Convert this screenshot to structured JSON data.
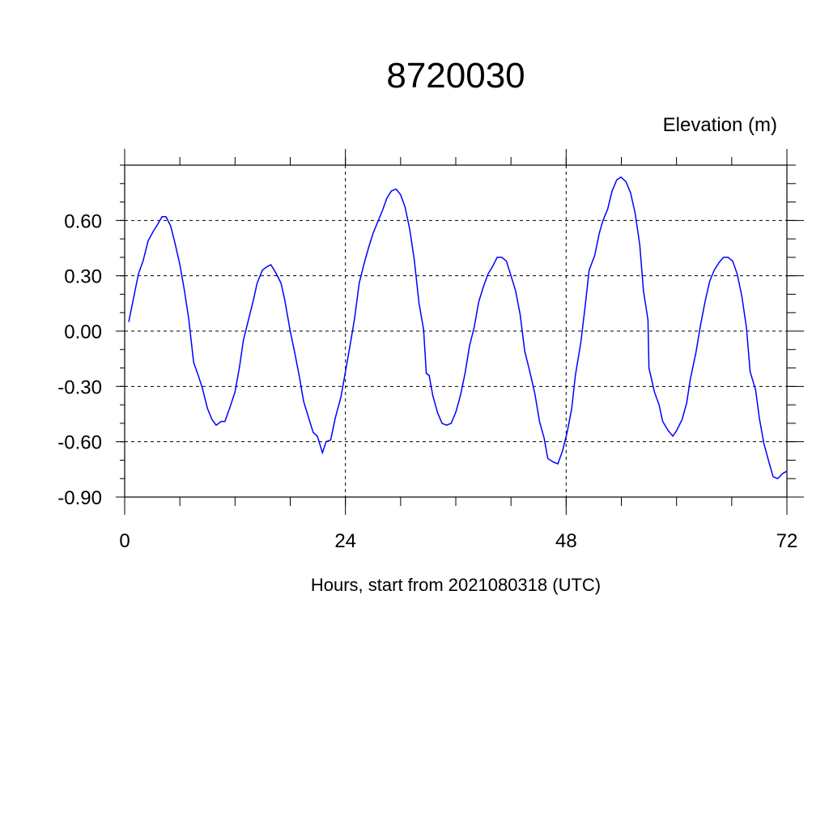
{
  "chart_data": {
    "type": "line",
    "title": "8720030",
    "ylabel": "Elevation (m)",
    "xlabel": "Hours, start from 2021080318 (UTC)",
    "xlim": [
      0,
      72
    ],
    "ylim": [
      -0.9,
      0.9
    ],
    "xticks": [
      0,
      24,
      48,
      72
    ],
    "xtick_labels": [
      "0",
      "24",
      "48",
      "72"
    ],
    "yticks": [
      0.6,
      0.3,
      0.0,
      -0.3,
      -0.6,
      -0.9
    ],
    "ytick_labels": [
      "0.60",
      "0.30",
      "0.00",
      "-0.30",
      "-0.60",
      "-0.90"
    ],
    "grid": "dashed at major ticks",
    "line_color": "#0000ff",
    "series": [
      {
        "x": [
          0.44,
          1.5,
          2.0,
          2.55,
          3.1,
          3.6,
          4.05,
          4.5,
          5.0,
          5.46,
          6.0,
          6.5,
          6.95,
          7.5,
          8.0,
          8.45,
          9.0,
          9.5,
          9.95,
          10.5,
          10.9,
          11.4,
          12.0,
          12.5,
          12.9,
          13.5,
          14.0,
          14.4,
          14.96,
          15.5,
          15.9,
          16.5,
          17.0,
          17.4,
          18.0,
          18.5,
          19.0,
          19.45,
          20.0,
          20.5,
          20.95,
          21.5,
          21.9,
          22.4,
          22.9,
          23.5,
          23.9,
          24.5,
          25.0,
          25.5,
          26.0,
          26.5,
          27.0,
          27.5,
          28.0,
          28.5,
          29.0,
          29.5,
          30.0,
          30.5,
          31.0,
          31.5,
          32.0,
          32.5,
          32.8,
          33.1,
          33.5,
          34.0,
          34.5,
          35.0,
          35.5,
          36.0,
          36.5,
          37.0,
          37.5,
          38.0,
          38.5,
          39.0,
          39.5,
          40.0,
          40.5,
          41.0,
          41.5,
          42.0,
          42.5,
          43.0,
          43.5,
          44.0,
          44.6,
          45.1,
          45.6,
          46.0,
          46.6,
          47.1,
          47.6,
          48.1,
          48.6,
          49.0,
          49.6,
          50.1,
          50.5,
          51.1,
          51.6,
          52.0,
          52.5,
          53.0,
          53.5,
          53.96,
          54.5,
          55.0,
          55.5,
          56.0,
          56.4,
          56.9,
          57.0,
          57.6,
          58.1,
          58.5,
          59.1,
          59.6,
          60.0,
          60.6,
          61.1,
          61.5,
          62.1,
          62.6,
          63.1,
          63.6,
          64.1,
          64.6,
          65.1,
          65.6,
          66.1,
          66.6,
          67.1,
          67.6,
          68.0,
          68.6,
          69.0,
          69.5,
          70.1,
          70.5,
          71.0,
          71.6,
          72.0
        ],
        "y": [
          0.05,
          0.31,
          0.38,
          0.49,
          0.54,
          0.58,
          0.62,
          0.62,
          0.57,
          0.48,
          0.36,
          0.22,
          0.07,
          -0.17,
          -0.24,
          -0.31,
          -0.42,
          -0.48,
          -0.51,
          -0.49,
          -0.49,
          -0.42,
          -0.33,
          -0.19,
          -0.05,
          0.07,
          0.17,
          0.26,
          0.33,
          0.35,
          0.36,
          0.31,
          0.26,
          0.17,
          0.0,
          -0.12,
          -0.25,
          -0.38,
          -0.47,
          -0.55,
          -0.57,
          -0.66,
          -0.6,
          -0.59,
          -0.47,
          -0.36,
          -0.25,
          -0.08,
          0.07,
          0.26,
          0.36,
          0.45,
          0.53,
          0.59,
          0.65,
          0.72,
          0.76,
          0.77,
          0.74,
          0.67,
          0.55,
          0.38,
          0.15,
          0.01,
          -0.23,
          -0.24,
          -0.35,
          -0.44,
          -0.5,
          -0.51,
          -0.5,
          -0.44,
          -0.35,
          -0.23,
          -0.08,
          0.02,
          0.16,
          0.24,
          0.31,
          0.35,
          0.4,
          0.4,
          0.38,
          0.3,
          0.22,
          0.09,
          -0.11,
          -0.21,
          -0.34,
          -0.49,
          -0.58,
          -0.69,
          -0.71,
          -0.72,
          -0.65,
          -0.55,
          -0.42,
          -0.24,
          -0.06,
          0.15,
          0.33,
          0.41,
          0.53,
          0.6,
          0.66,
          0.76,
          0.82,
          0.835,
          0.81,
          0.75,
          0.64,
          0.47,
          0.22,
          0.06,
          -0.2,
          -0.33,
          -0.4,
          -0.49,
          -0.54,
          -0.57,
          -0.54,
          -0.48,
          -0.39,
          -0.26,
          -0.12,
          0.03,
          0.16,
          0.27,
          0.33,
          0.37,
          0.4,
          0.4,
          0.38,
          0.31,
          0.19,
          0.02,
          -0.22,
          -0.32,
          -0.47,
          -0.61,
          -0.72,
          -0.79,
          -0.8,
          -0.77,
          -0.76
        ]
      }
    ]
  }
}
